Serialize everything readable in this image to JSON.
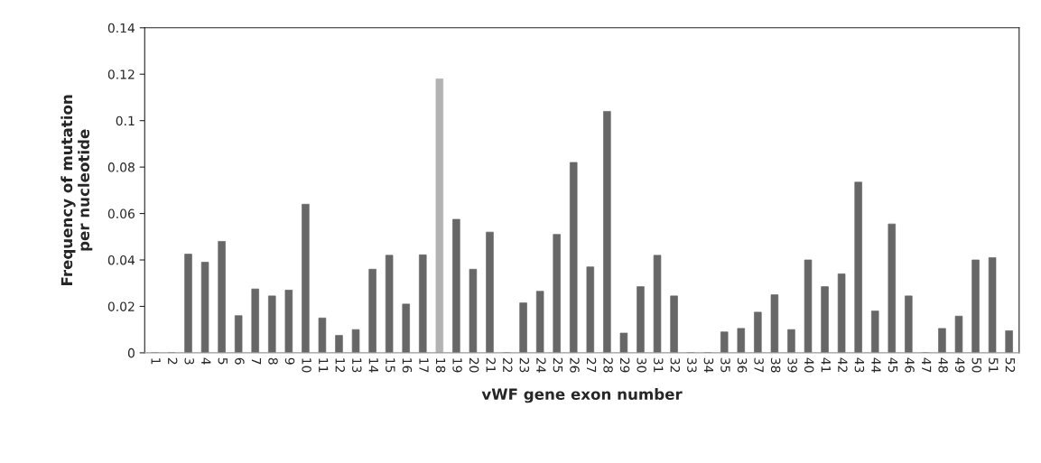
{
  "chart_data": {
    "type": "bar",
    "xlabel": "vWF gene exon number",
    "ylabel": "Frequency of mutation\nper nucleotide",
    "categories": [
      "1",
      "2",
      "3",
      "4",
      "5",
      "6",
      "7",
      "8",
      "9",
      "10",
      "11",
      "12",
      "13",
      "14",
      "15",
      "16",
      "17",
      "18",
      "19",
      "20",
      "21",
      "22",
      "23",
      "24",
      "25",
      "26",
      "27",
      "28",
      "29",
      "30",
      "31",
      "32",
      "33",
      "34",
      "35",
      "36",
      "37",
      "38",
      "39",
      "40",
      "41",
      "42",
      "43",
      "44",
      "45",
      "46",
      "47",
      "48",
      "49",
      "50",
      "51",
      "52"
    ],
    "values": [
      0,
      0,
      0.0425,
      0.039,
      0.048,
      0.016,
      0.0275,
      0.0245,
      0.027,
      0.064,
      0.015,
      0.0075,
      0.01,
      0.036,
      0.042,
      0.021,
      0.0422,
      0.118,
      0.0575,
      0.036,
      0.052,
      0,
      0.0215,
      0.0265,
      0.051,
      0.082,
      0.037,
      0.104,
      0.0085,
      0.0285,
      0.042,
      0.0245,
      0,
      0,
      0.009,
      0.0105,
      0.0175,
      0.025,
      0.01,
      0.04,
      0.0285,
      0.034,
      0.0735,
      0.018,
      0.0555,
      0.0245,
      0,
      0.0105,
      0.0158,
      0.04,
      0.041,
      0.0095
    ],
    "colors": [
      "#676767",
      "#676767",
      "#676767",
      "#676767",
      "#676767",
      "#676767",
      "#676767",
      "#676767",
      "#676767",
      "#676767",
      "#676767",
      "#676767",
      "#676767",
      "#676767",
      "#676767",
      "#676767",
      "#676767",
      "#b3b3b3",
      "#676767",
      "#676767",
      "#676767",
      "#676767",
      "#676767",
      "#676767",
      "#676767",
      "#676767",
      "#676767",
      "#676767",
      "#676767",
      "#676767",
      "#676767",
      "#676767",
      "#676767",
      "#676767",
      "#676767",
      "#676767",
      "#676767",
      "#676767",
      "#676767",
      "#676767",
      "#676767",
      "#676767",
      "#676767",
      "#676767",
      "#676767",
      "#676767",
      "#676767",
      "#676767",
      "#676767",
      "#676767",
      "#676767",
      "#676767"
    ],
    "ylim": [
      0,
      0.14
    ],
    "yticks": [
      0,
      0.02,
      0.04,
      0.06,
      0.08,
      0.1,
      0.12,
      0.14
    ],
    "grid": false,
    "legend": false
  }
}
